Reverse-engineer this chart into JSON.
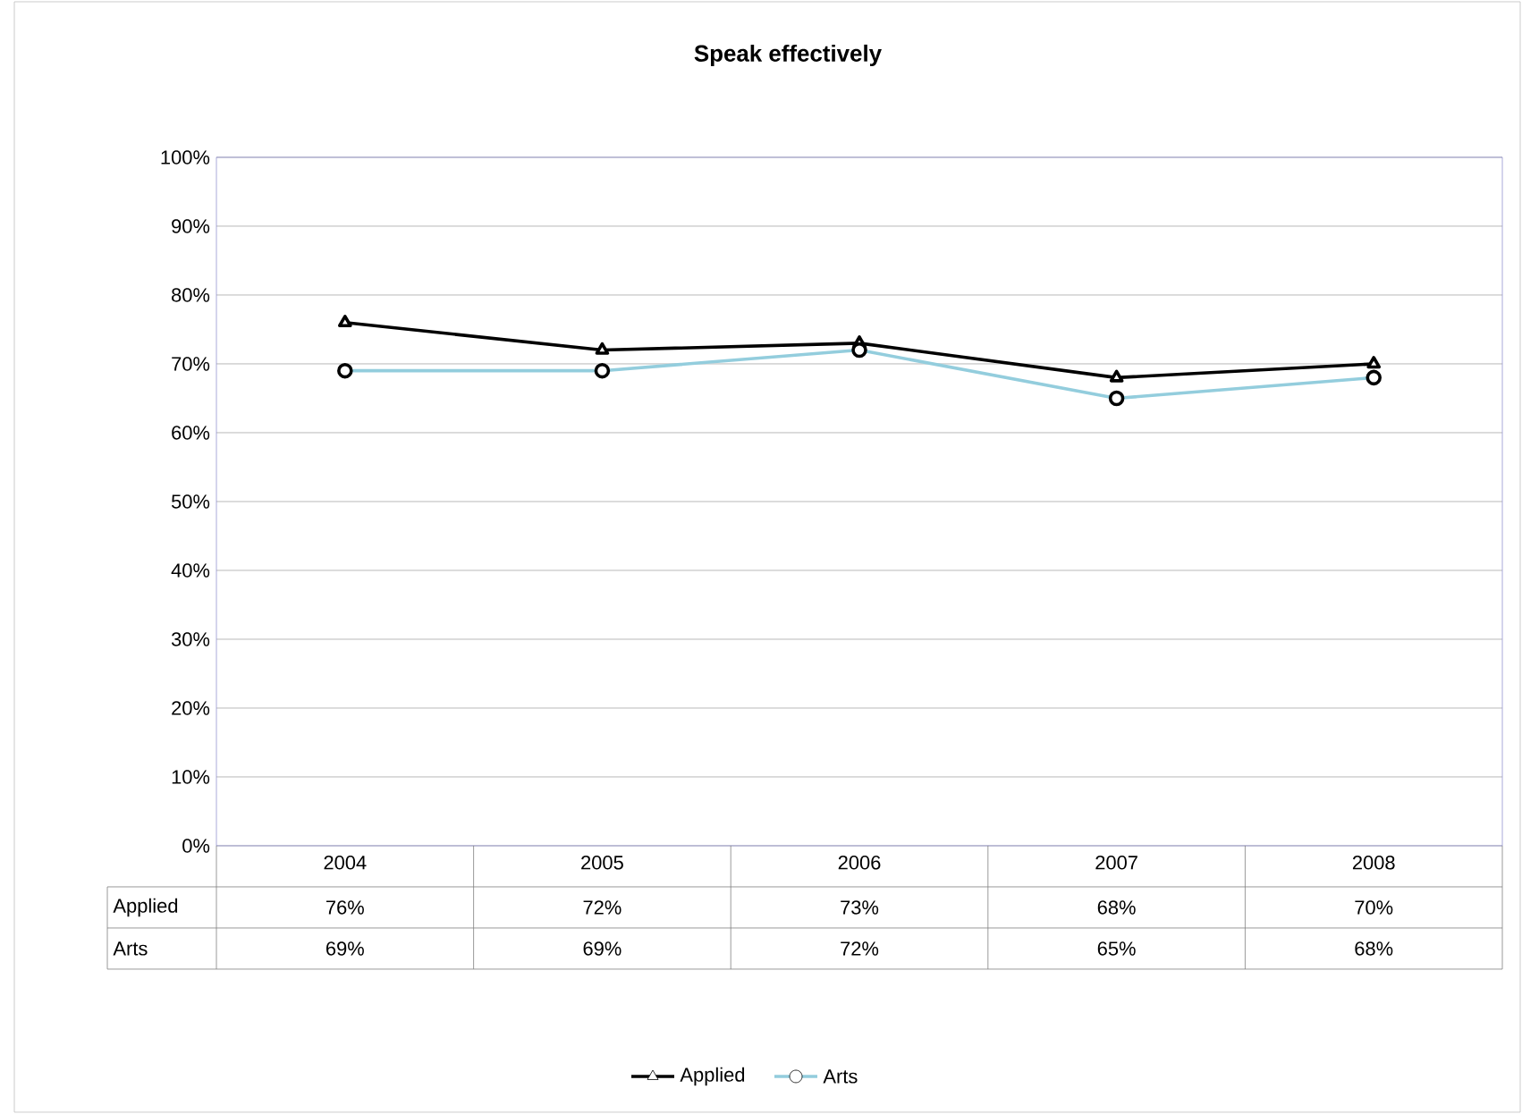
{
  "chart_data": {
    "type": "line",
    "title": "Speak effectively",
    "categories": [
      "2004",
      "2005",
      "2006",
      "2007",
      "2008"
    ],
    "series": [
      {
        "name": "Applied",
        "color": "#000000",
        "marker": "triangle",
        "values": [
          76,
          72,
          73,
          68,
          70
        ],
        "value_labels": [
          "76%",
          "72%",
          "73%",
          "68%",
          "70%"
        ]
      },
      {
        "name": "Arts",
        "color": "#93cddd",
        "marker": "circle",
        "values": [
          69,
          69,
          72,
          65,
          68
        ],
        "value_labels": [
          "69%",
          "69%",
          "72%",
          "65%",
          "68%"
        ]
      }
    ],
    "ylim": [
      0,
      100
    ],
    "yticks": [
      {
        "value": 0,
        "label": "0%"
      },
      {
        "value": 10,
        "label": "10%"
      },
      {
        "value": 20,
        "label": "20%"
      },
      {
        "value": 30,
        "label": "30%"
      },
      {
        "value": 40,
        "label": "40%"
      },
      {
        "value": 50,
        "label": "50%"
      },
      {
        "value": 60,
        "label": "60%"
      },
      {
        "value": 70,
        "label": "70%"
      },
      {
        "value": 80,
        "label": "80%"
      },
      {
        "value": 90,
        "label": "90%"
      },
      {
        "value": 100,
        "label": "100%"
      }
    ],
    "grid": "y",
    "legend": "bottom"
  }
}
